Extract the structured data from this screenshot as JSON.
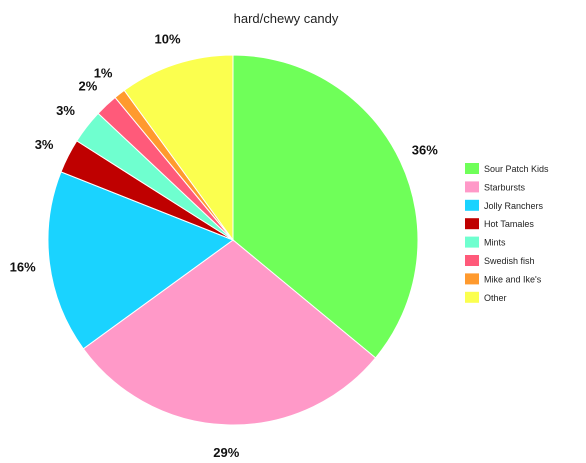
{
  "chart_data": {
    "type": "pie",
    "title": "hard/chewy candy",
    "legend_position": "right",
    "start_angle_deg": 0,
    "direction": "clockwise",
    "slices": [
      {
        "name": "Sour Patch Kids",
        "value": 36,
        "label": "36%",
        "color": "#6fff59"
      },
      {
        "name": "Starbursts",
        "value": 29,
        "label": "29%",
        "color": "#ff99c8"
      },
      {
        "name": "Jolly Ranchers",
        "value": 16,
        "label": "16%",
        "color": "#1ad3ff"
      },
      {
        "name": "Hot Tamales",
        "value": 3,
        "label": "3%",
        "color": "#bf0000"
      },
      {
        "name": "Mints",
        "value": 3,
        "label": "3%",
        "color": "#6fffcf"
      },
      {
        "name": "Swedish fish",
        "value": 2,
        "label": "2%",
        "color": "#ff5a7a"
      },
      {
        "name": "Mike and Ike's",
        "value": 1,
        "label": "1%",
        "color": "#ff9a2e"
      },
      {
        "name": "Other",
        "value": 10,
        "label": "10%",
        "color": "#fbff4f"
      }
    ]
  }
}
